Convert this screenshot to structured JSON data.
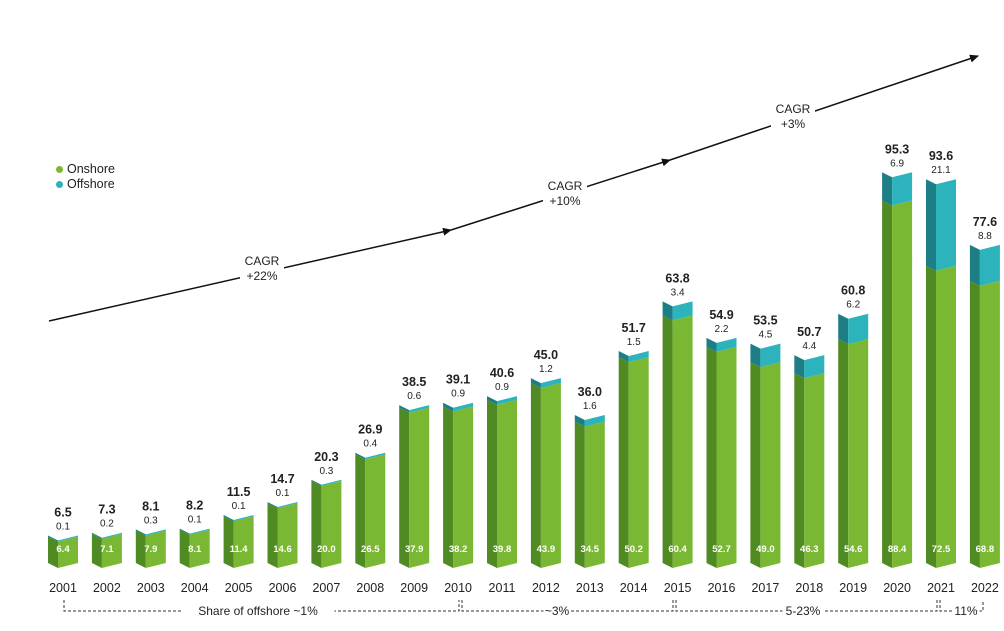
{
  "chart_data": {
    "type": "bar",
    "stacked": true,
    "categories": [
      "2001",
      "2002",
      "2003",
      "2004",
      "2005",
      "2006",
      "2007",
      "2008",
      "2009",
      "2010",
      "2011",
      "2012",
      "2013",
      "2014",
      "2015",
      "2016",
      "2017",
      "2018",
      "2019",
      "2020",
      "2021",
      "2022"
    ],
    "series": [
      {
        "name": "Onshore",
        "values": [
          6.4,
          7.1,
          7.9,
          8.1,
          11.4,
          14.6,
          20.0,
          26.5,
          37.9,
          38.2,
          39.8,
          43.9,
          34.5,
          50.2,
          60.4,
          52.7,
          49.0,
          46.3,
          54.6,
          88.4,
          72.5,
          68.8
        ]
      },
      {
        "name": "Offshore",
        "values": [
          0.1,
          0.2,
          0.3,
          0.1,
          0.1,
          0.1,
          0.3,
          0.4,
          0.6,
          0.9,
          0.9,
          1.2,
          1.6,
          1.5,
          3.4,
          2.2,
          4.5,
          4.4,
          6.2,
          6.9,
          21.1,
          8.8
        ]
      }
    ],
    "onshore_labels": [
      "6.4",
      "7.1",
      "7.9",
      "8.1",
      "11.4",
      "14.6",
      "20.0",
      "26.5",
      "37.9",
      "38.2",
      "39.8",
      "43.9",
      "34.5",
      "50.2",
      "60.4",
      "52.7",
      "49.0",
      "46.3",
      "54.6",
      "88.4",
      "72.5",
      "68.8"
    ],
    "offshore_labels": [
      "0.1",
      "0.2",
      "0.3",
      "0.1",
      "0.1",
      "0.1",
      "0.3",
      "0.4",
      "0.6",
      "0.9",
      "0.9",
      "1.2",
      "1.6",
      "1.5",
      "3.4",
      "2.2",
      "4.5",
      "4.4",
      "6.2",
      "6.9",
      "21.1",
      "8.8"
    ],
    "total_labels": [
      "6.5",
      "7.3",
      "8.1",
      "8.2",
      "11.5",
      "14.7",
      "20.3",
      "26.9",
      "38.5",
      "39.1",
      "40.6",
      "45.0",
      "36.0",
      "51.7",
      "63.8",
      "54.9",
      "53.5",
      "50.7",
      "60.8",
      "95.3",
      "93.6",
      "77.6"
    ],
    "cagr_labels": [
      {
        "line1": "CAGR",
        "line2": "+22%"
      },
      {
        "line1": "CAGR",
        "line2": "+10%"
      },
      {
        "line1": "CAGR",
        "line2": "+3%"
      }
    ],
    "share_brackets": [
      {
        "label": "Share of offshore ~1%",
        "from": "2001",
        "to": "2010"
      },
      {
        "label": "~3%",
        "from": "2010",
        "to": "2015"
      },
      {
        "label": "5-23%",
        "from": "2015",
        "to": "2021"
      },
      {
        "label": "11%",
        "from": "2021",
        "to": "2022"
      }
    ],
    "legend": [
      "Onshore",
      "Offshore"
    ],
    "legend_position": "left",
    "colors": {
      "onshore_front": "#7ab833",
      "onshore_side": "#4f8a22",
      "onshore_top": "#9ccc5a",
      "offshore_front": "#2cb3bb",
      "offshore_side": "#1d7e86",
      "offshore_top": "#54c8cf",
      "text": "#222222",
      "line": "#111111"
    }
  }
}
